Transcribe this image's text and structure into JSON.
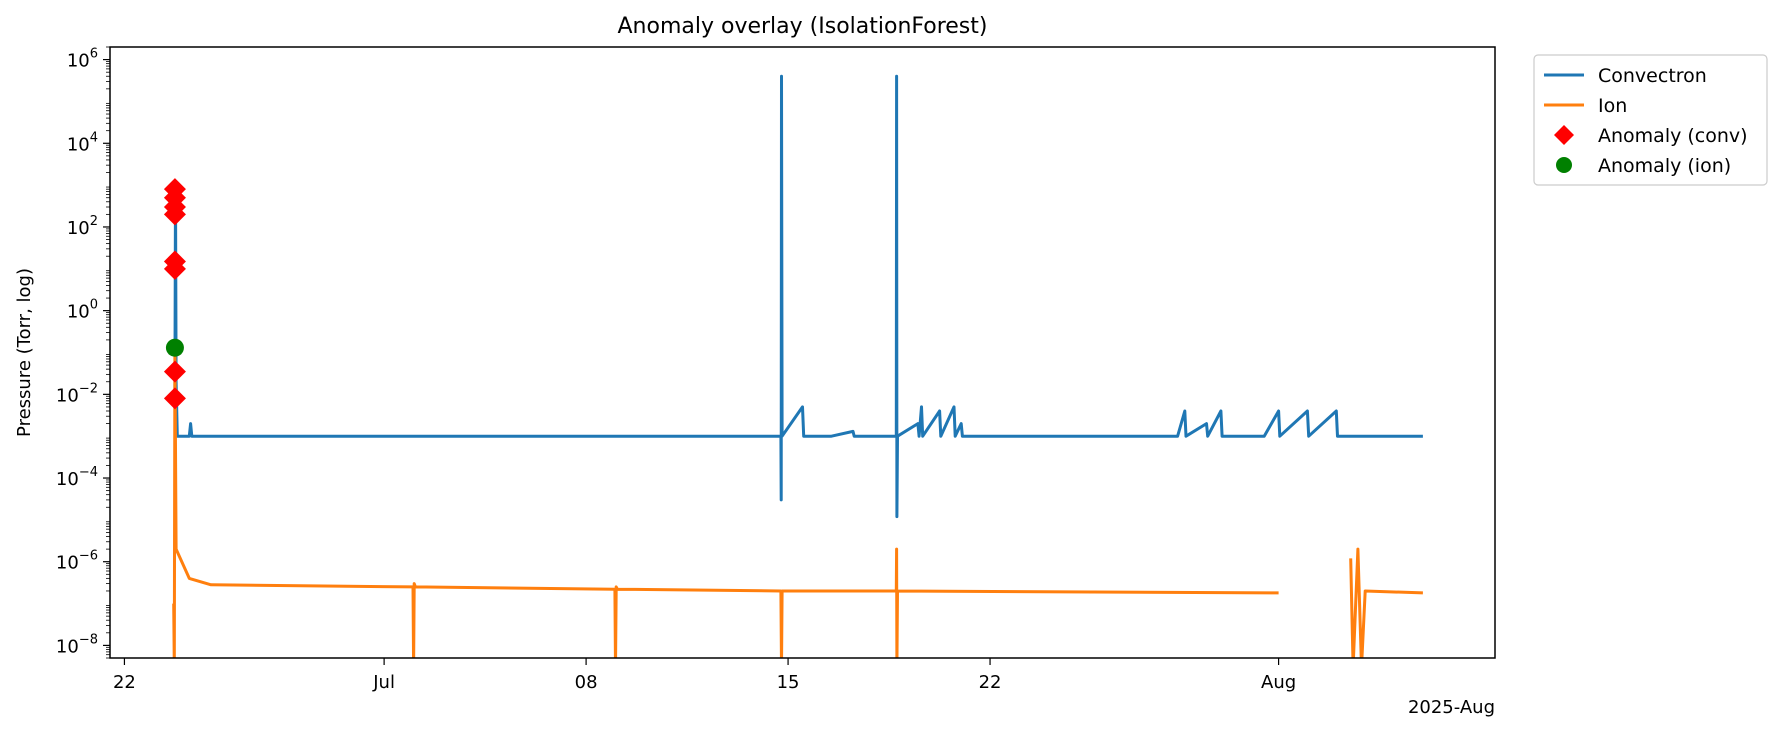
{
  "chart_data": {
    "type": "line",
    "title": "Anomaly overlay (IsolationForest)",
    "xlabel": "",
    "ylabel": "Pressure (Torr, log)",
    "x_offset_label": "2025-Aug",
    "yscale": "log",
    "xlim": [
      "2025-06-21 12:00",
      "2025-08-08 12:00"
    ],
    "ylim": [
      5e-09,
      2000000.0
    ],
    "grid": false,
    "legend_position": "outside-top-right",
    "x_ticks": [
      {
        "date": "2025-06-22",
        "label": "22"
      },
      {
        "date": "2025-07-01",
        "label": "Jul"
      },
      {
        "date": "2025-07-08",
        "label": "08"
      },
      {
        "date": "2025-07-15",
        "label": "15"
      },
      {
        "date": "2025-07-22",
        "label": "22"
      },
      {
        "date": "2025-08-01",
        "label": "Aug"
      }
    ],
    "y_ticks": [
      {
        "value": 1e-08,
        "base": "10",
        "exp": "−8"
      },
      {
        "value": 1e-06,
        "base": "10",
        "exp": "−6"
      },
      {
        "value": 0.0001,
        "base": "10",
        "exp": "−4"
      },
      {
        "value": 0.01,
        "base": "10",
        "exp": "−2"
      },
      {
        "value": 1,
        "base": "10",
        "exp": "0"
      },
      {
        "value": 100,
        "base": "10",
        "exp": "2"
      },
      {
        "value": 10000,
        "base": "10",
        "exp": "4"
      },
      {
        "value": 1000000,
        "base": "10",
        "exp": "6"
      }
    ],
    "series": [
      {
        "name": "Convectron",
        "kind": "line",
        "color": "#1f77b4",
        "points": [
          [
            "2025-06-23 18:00",
            0.01
          ],
          [
            "2025-06-23 18:30",
            1000
          ],
          [
            "2025-06-23 19:00",
            0.02
          ],
          [
            "2025-06-23 20:00",
            0.001
          ],
          [
            "2025-06-24 06:00",
            0.001
          ],
          [
            "2025-06-24 07:00",
            0.002
          ],
          [
            "2025-06-24 08:00",
            0.001
          ],
          [
            "2025-07-14 18:00",
            0.001
          ],
          [
            "2025-07-14 18:15",
            3e-05
          ],
          [
            "2025-07-14 18:30",
            400000
          ],
          [
            "2025-07-14 19:00",
            0.001
          ],
          [
            "2025-07-15 12:00",
            0.005
          ],
          [
            "2025-07-15 13:00",
            0.001
          ],
          [
            "2025-07-16 12:00",
            0.001
          ],
          [
            "2025-07-17 06:00",
            0.0013
          ],
          [
            "2025-07-17 07:00",
            0.001
          ],
          [
            "2025-07-18 18:00",
            0.001
          ],
          [
            "2025-07-18 18:15",
            400000
          ],
          [
            "2025-07-18 18:30",
            1.2e-05
          ],
          [
            "2025-07-18 19:00",
            0.001
          ],
          [
            "2025-07-19 12:00",
            0.002
          ],
          [
            "2025-07-19 13:00",
            0.001
          ],
          [
            "2025-07-19 15:00",
            0.005
          ],
          [
            "2025-07-19 16:00",
            0.001
          ],
          [
            "2025-07-20 06:00",
            0.004
          ],
          [
            "2025-07-20 07:00",
            0.001
          ],
          [
            "2025-07-20 18:00",
            0.005
          ],
          [
            "2025-07-20 19:00",
            0.001
          ],
          [
            "2025-07-21 00:00",
            0.002
          ],
          [
            "2025-07-21 01:00",
            0.001
          ],
          [
            "2025-07-28 12:00",
            0.001
          ],
          [
            "2025-07-28 18:00",
            0.004
          ],
          [
            "2025-07-28 19:00",
            0.001
          ],
          [
            "2025-07-29 12:00",
            0.002
          ],
          [
            "2025-07-29 13:00",
            0.001
          ],
          [
            "2025-07-30 00:00",
            0.004
          ],
          [
            "2025-07-30 01:00",
            0.001
          ],
          [
            "2025-07-31 12:00",
            0.001
          ],
          [
            "2025-08-01 00:00",
            0.004
          ],
          [
            "2025-08-01 01:00",
            0.001
          ],
          [
            "2025-08-02 00:00",
            0.004
          ],
          [
            "2025-08-02 01:00",
            0.001
          ],
          [
            "2025-08-03 00:00",
            0.004
          ],
          [
            "2025-08-03 01:00",
            0.001
          ],
          [
            "2025-08-06 00:00",
            0.001
          ]
        ]
      },
      {
        "name": "Ion",
        "kind": "line",
        "color": "#ff7f0e",
        "points": [
          [
            "2025-06-23 17:00",
            1e-07
          ],
          [
            "2025-06-23 17:30",
            3e-09
          ],
          [
            "2025-06-23 18:00",
            0.13
          ],
          [
            "2025-06-23 19:00",
            2e-06
          ],
          [
            "2025-06-24 06:00",
            4e-07
          ],
          [
            "2025-06-25 00:00",
            2.8e-07
          ],
          [
            "2025-07-02 00:00",
            2.5e-07
          ],
          [
            "2025-07-02 00:30",
            3e-09
          ],
          [
            "2025-07-02 01:00",
            3e-07
          ],
          [
            "2025-07-02 02:00",
            2.5e-07
          ],
          [
            "2025-07-09 00:00",
            2.2e-07
          ],
          [
            "2025-07-09 00:30",
            3e-09
          ],
          [
            "2025-07-09 01:00",
            2.5e-07
          ],
          [
            "2025-07-09 02:00",
            2.2e-07
          ],
          [
            "2025-07-14 18:00",
            2e-07
          ],
          [
            "2025-07-14 18:30",
            3e-09
          ],
          [
            "2025-07-14 19:00",
            2e-07
          ],
          [
            "2025-07-18 18:00",
            2e-07
          ],
          [
            "2025-07-18 18:15",
            2e-06
          ],
          [
            "2025-07-18 18:30",
            3e-09
          ],
          [
            "2025-07-18 19:00",
            2e-07
          ],
          [
            "2025-08-01 00:00",
            1.8e-07
          ],
          [
            "gap",
            null
          ],
          [
            "2025-08-03 12:00",
            1.2e-06
          ],
          [
            "2025-08-03 14:00",
            3e-09
          ],
          [
            "2025-08-03 18:00",
            2e-06
          ],
          [
            "2025-08-03 21:00",
            3e-09
          ],
          [
            "2025-08-04 00:00",
            2e-07
          ],
          [
            "2025-08-06 00:00",
            1.8e-07
          ]
        ]
      },
      {
        "name": "Anomaly (conv)",
        "kind": "scatter",
        "marker": "diamond",
        "color": "#ff0000",
        "points": [
          [
            "2025-06-23 18:00",
            800
          ],
          [
            "2025-06-23 18:00",
            500
          ],
          [
            "2025-06-23 18:00",
            300
          ],
          [
            "2025-06-23 18:00",
            200
          ],
          [
            "2025-06-23 18:00",
            15
          ],
          [
            "2025-06-23 18:00",
            10
          ],
          [
            "2025-06-23 18:00",
            0.035
          ],
          [
            "2025-06-23 18:00",
            0.008
          ]
        ]
      },
      {
        "name": "Anomaly (ion)",
        "kind": "scatter",
        "marker": "circle",
        "color": "#008000",
        "points": [
          [
            "2025-06-23 18:00",
            0.13
          ]
        ]
      }
    ]
  }
}
